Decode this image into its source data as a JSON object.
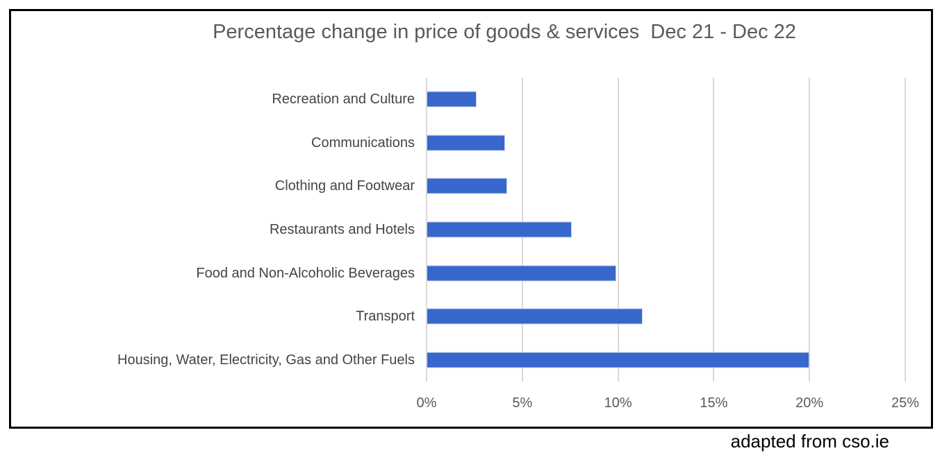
{
  "window": {
    "background_color": "#ffffff",
    "frame_border_color": "#000000"
  },
  "source_note": "adapted from cso.ie",
  "chart_data": {
    "type": "bar",
    "orientation": "horizontal",
    "title": "Percentage change in price of goods & services  Dec 21 - Dec 22",
    "categories": [
      "Recreation and Culture",
      "Communications",
      "Clothing and Footwear",
      "Restaurants and Hotels",
      "Food and Non-Alcoholic Beverages",
      "Transport",
      "Housing, Water, Electricity, Gas and Other Fuels"
    ],
    "values": [
      2.6,
      4.1,
      4.2,
      7.6,
      9.9,
      11.3,
      20.0
    ],
    "value_unit": "%",
    "xlabel": "",
    "ylabel": "",
    "xlim": [
      0,
      25
    ],
    "xticks": [
      "0%",
      "5%",
      "10%",
      "15%",
      "20%",
      "25%"
    ],
    "xtick_values": [
      0,
      5,
      10,
      15,
      20,
      25
    ],
    "grid": true,
    "legend": false,
    "bar_color": "#3767CC",
    "gridline_color": "#D9D9D9",
    "title_color": "#595959",
    "category_label_color": "#444444",
    "tick_label_color": "#595959"
  }
}
